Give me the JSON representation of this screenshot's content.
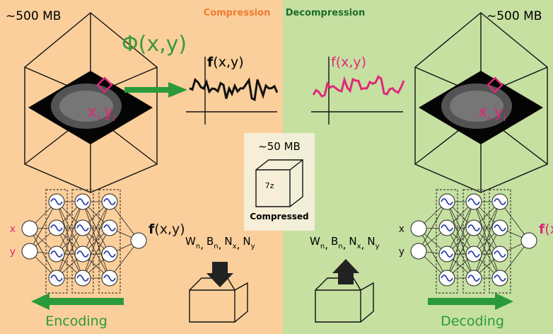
{
  "header": {
    "left": "Compression",
    "right": "Decompression"
  },
  "left_panel": {
    "size": "~500 MB",
    "function": "Φ(x,y)",
    "plot_label": {
      "f": "f",
      "args": "(x,y)"
    },
    "point": {
      "x": "x",
      "x_sub": "i",
      "y": "y",
      "y_sub": "i"
    },
    "network": {
      "inputs": [
        "x",
        "y"
      ],
      "output": {
        "f": "f",
        "args": "(x,y)"
      }
    },
    "params": {
      "terms": [
        {
          "symbol": "W",
          "sub": "n"
        },
        {
          "symbol": "B",
          "sub": "n"
        },
        {
          "symbol": "N",
          "sub": "x"
        },
        {
          "symbol": "N",
          "sub": "y"
        }
      ],
      "separator": ","
    },
    "arrow_label": "Encoding"
  },
  "right_panel": {
    "size": "~500 MB",
    "plot_label": {
      "f": "f",
      "args": "(x,y)"
    },
    "point": {
      "x": "x",
      "x_sub": "i",
      "y": "y",
      "y_sub": "i"
    },
    "network": {
      "inputs": [
        "x",
        "y"
      ],
      "output": {
        "f": "f",
        "args": "(x,y"
      }
    },
    "params": {
      "terms": [
        {
          "symbol": "W",
          "sub": "n"
        },
        {
          "symbol": "B",
          "sub": "n"
        },
        {
          "symbol": "N",
          "sub": "x"
        },
        {
          "symbol": "N",
          "sub": "y"
        }
      ],
      "separator": ","
    },
    "arrow_label": "Decoding"
  },
  "archive": {
    "size": "~50 MB",
    "format": "7z",
    "label": "Compressed"
  }
}
